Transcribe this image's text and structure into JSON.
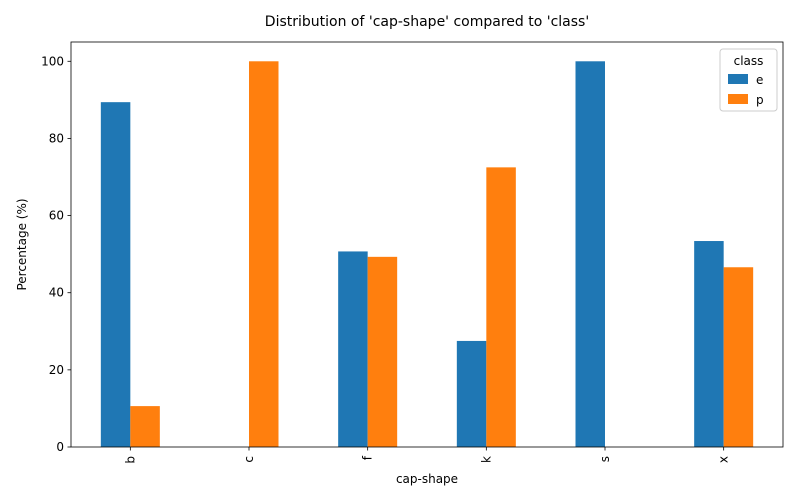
{
  "chart_data": {
    "type": "bar",
    "title": "Distribution of 'cap-shape' compared to 'class'",
    "xlabel": "cap-shape",
    "ylabel": "Percentage (%)",
    "categories": [
      "b",
      "c",
      "f",
      "k",
      "s",
      "x"
    ],
    "series": [
      {
        "name": "e",
        "color": "#1f77b4",
        "values": [
          89.4,
          0,
          50.7,
          27.5,
          100,
          53.4
        ]
      },
      {
        "name": "p",
        "color": "#ff7f0e",
        "values": [
          10.6,
          100,
          49.3,
          72.5,
          0,
          46.6
        ]
      }
    ],
    "yticks": [
      0,
      20,
      40,
      60,
      80,
      100
    ],
    "ylim": [
      0,
      105
    ],
    "legend": {
      "title": "class",
      "position": "top-right"
    },
    "grid": false
  }
}
